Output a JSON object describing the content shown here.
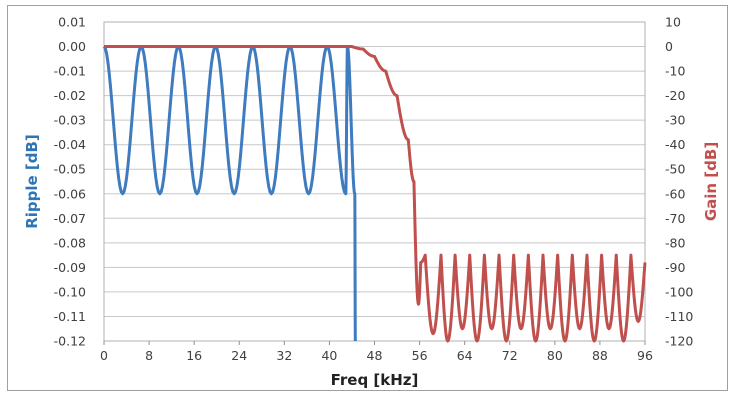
{
  "chart_data": {
    "type": "line",
    "title": "",
    "xlabel": "Freq [kHz]",
    "ylabel_left": "Ripple [dB]",
    "ylabel_right": "Gain [dB]",
    "xlim": [
      0,
      96
    ],
    "x_ticks": [
      "0",
      "8",
      "16",
      "24",
      "32",
      "40",
      "48",
      "56",
      "64",
      "72",
      "80",
      "88",
      "96"
    ],
    "ylim_left": [
      -0.12,
      0.01
    ],
    "y_left_ticks": [
      "0.01",
      "0.00",
      "-0.01",
      "-0.02",
      "-0.03",
      "-0.04",
      "-0.05",
      "-0.06",
      "-0.07",
      "-0.08",
      "-0.09",
      "-0.10",
      "-0.11",
      "-0.12"
    ],
    "ylim_right": [
      -120,
      10
    ],
    "y_right_ticks": [
      "10",
      "0",
      "-10",
      "-20",
      "-30",
      "-40",
      "-50",
      "-60",
      "-70",
      "-80",
      "-90",
      "-100",
      "-110",
      "-120"
    ],
    "grid": true,
    "legend": "none",
    "series": [
      {
        "axis": "left",
        "color": "#3e7bbf",
        "shape": "passband ripple, equiripple between 0.00 and -0.06 dB, drops to -0.12 dB near 44 kHz",
        "x": [
          0.0,
          3.3,
          6.6,
          9.9,
          13.2,
          16.5,
          19.8,
          23.1,
          26.4,
          29.7,
          33.0,
          36.3,
          39.6,
          42.9,
          43.2,
          44.5,
          44.6
        ],
        "values": [
          0.0,
          -0.06,
          0.0,
          -0.06,
          0.0,
          -0.06,
          0.0,
          -0.06,
          0.0,
          -0.06,
          0.0,
          -0.06,
          0.0,
          -0.06,
          0.0,
          -0.06,
          -0.12
        ]
      },
      {
        "axis": "right",
        "color": "#c0504d",
        "shape": "lowpass gain, flat 0 dB to ~44 kHz, rolls off to about -105 dB at 56 kHz, stopband equiripple lobes peaking near -85 dB with nulls to -120 dB",
        "x": [
          0,
          44,
          46,
          48,
          50,
          52,
          54,
          55,
          55.8,
          56.2,
          57.0,
          58.4,
          59.8,
          61.0,
          62.3,
          63.6,
          64.9,
          66.2,
          67.5,
          68.8,
          70.1,
          71.4,
          72.7,
          74.0,
          75.3,
          76.6,
          77.9,
          79.2,
          80.5,
          81.8,
          83.1,
          84.4,
          85.7,
          87.0,
          88.3,
          89.6,
          90.9,
          92.2,
          93.5,
          94.8,
          96
        ],
        "values": [
          0,
          0,
          -1,
          -4,
          -10,
          -20,
          -38,
          -55,
          -105,
          -88,
          -85,
          -117,
          -85,
          -120,
          -85,
          -115,
          -85,
          -120,
          -85,
          -115,
          -85,
          -120,
          -85,
          -115,
          -85,
          -120,
          -85,
          -115,
          -85,
          -120,
          -85,
          -115,
          -85,
          -120,
          -85,
          -115,
          -85,
          -120,
          -85,
          -112,
          -88
        ]
      }
    ]
  }
}
